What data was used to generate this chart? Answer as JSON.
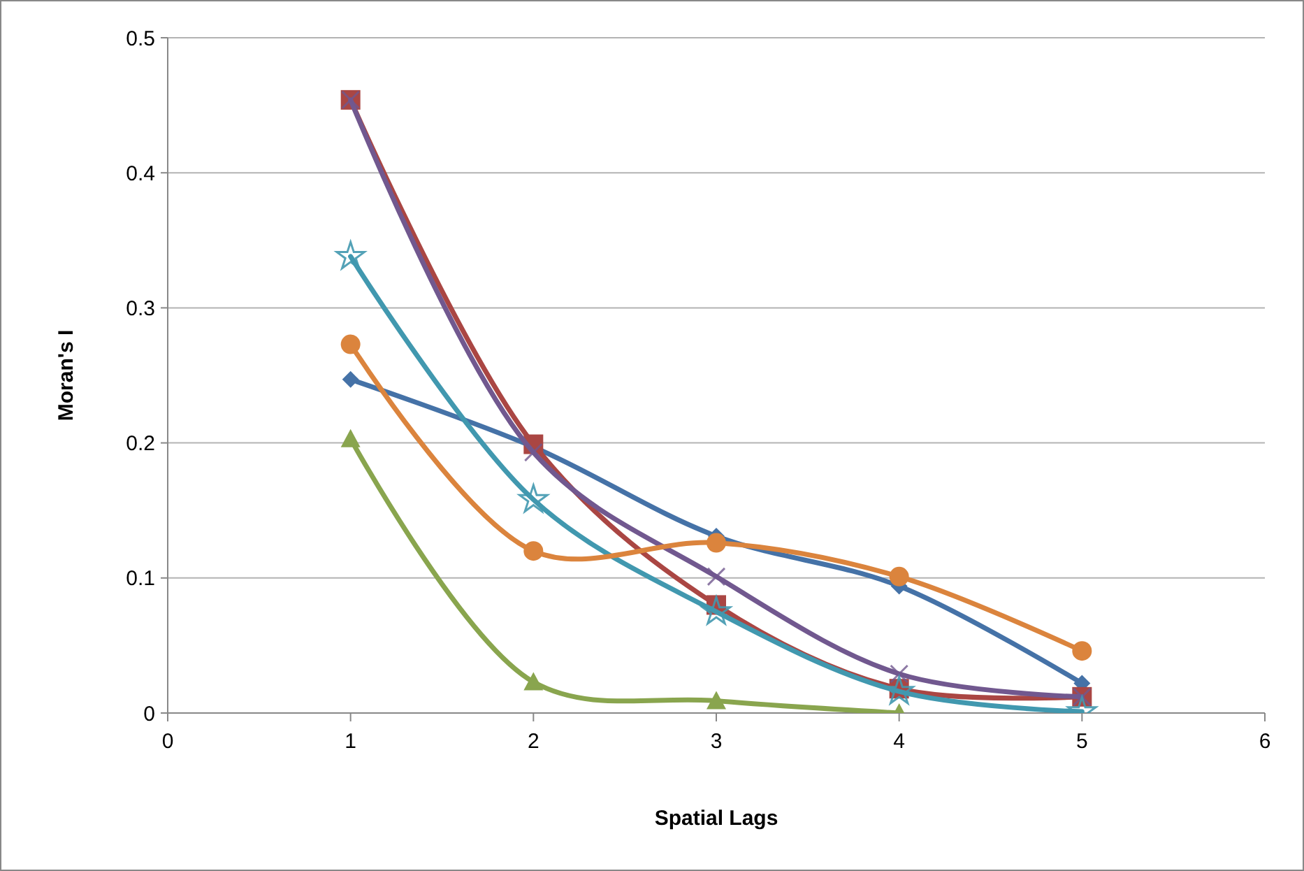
{
  "chart_data": {
    "type": "line",
    "xlabel": "Spatial Lags",
    "ylabel": "Moran's I",
    "x": [
      1,
      2,
      3,
      4,
      5
    ],
    "xlim": [
      0,
      6
    ],
    "xticks": [
      0,
      1,
      2,
      3,
      4,
      5,
      6
    ],
    "ylim": [
      0,
      0.5
    ],
    "yticks": [
      0,
      0.1,
      0.2,
      0.3,
      0.4,
      0.5
    ],
    "grid": "y",
    "series": [
      {
        "color": "#4572a7",
        "marker": "diamond",
        "values": [
          0.247,
          0.197,
          0.131,
          0.094,
          0.022
        ]
      },
      {
        "color": "#aa4643",
        "marker": "square",
        "values": [
          0.454,
          0.199,
          0.08,
          0.018,
          0.012
        ]
      },
      {
        "color": "#89a54e",
        "marker": "triangle",
        "values": [
          0.203,
          0.023,
          0.009,
          0.0,
          null
        ]
      },
      {
        "color": "#71588f",
        "marker": "cross",
        "values": [
          0.454,
          0.193,
          0.101,
          0.029,
          0.012
        ]
      },
      {
        "color": "#4198af",
        "marker": "star",
        "values": [
          0.338,
          0.158,
          0.075,
          0.016,
          0.001
        ]
      },
      {
        "color": "#db843d",
        "marker": "circle",
        "values": [
          0.273,
          0.12,
          0.126,
          0.101,
          0.046
        ]
      }
    ]
  }
}
